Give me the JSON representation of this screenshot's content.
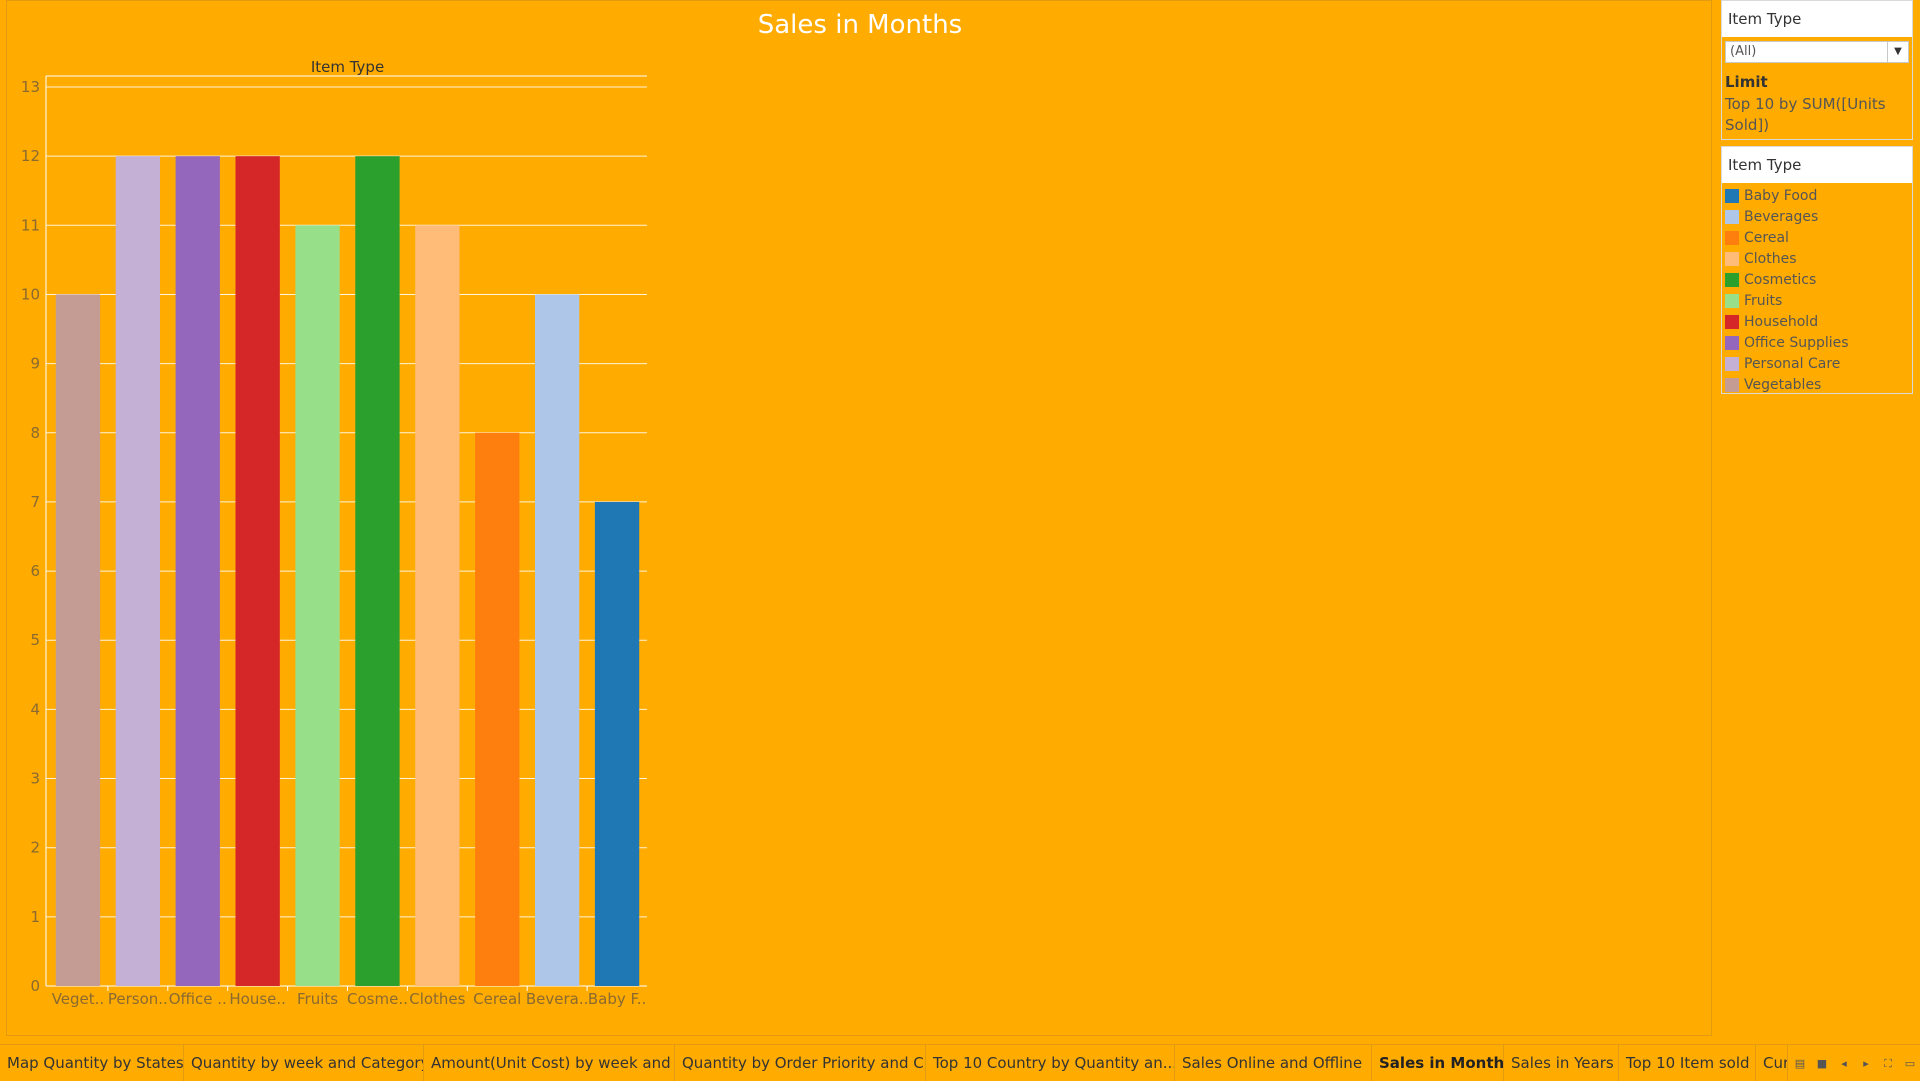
{
  "chart_data": {
    "type": "bar",
    "title": "Sales in Months",
    "header": "Item Type",
    "categories": [
      "Veget..",
      "Person..",
      "Office ..",
      "House..",
      "Fruits",
      "Cosme..",
      "Clothes",
      "Cereal",
      "Bevera..",
      "Baby F.."
    ],
    "values": [
      10,
      12,
      12,
      12,
      11,
      12,
      11,
      8,
      10,
      7
    ],
    "colors": [
      "#c49c94",
      "#c5b0d5",
      "#9467bd",
      "#d62728",
      "#98df8a",
      "#2ca02c",
      "#ffbb78",
      "#ff7f0e",
      "#aec7e8",
      "#1f77b4"
    ],
    "ylim": [
      0,
      13
    ],
    "yticks": [
      0,
      1,
      2,
      3,
      4,
      5,
      6,
      7,
      8,
      9,
      10,
      11,
      12,
      13
    ],
    "grid": true
  },
  "filter": {
    "title": "Item Type",
    "selected": "(All)",
    "limit_label": "Limit",
    "limit_text": "Top 10 by SUM([Units Sold])"
  },
  "legend": {
    "title": "Item Type",
    "items": [
      {
        "label": "Baby Food",
        "color": "#1f77b4"
      },
      {
        "label": "Beverages",
        "color": "#aec7e8"
      },
      {
        "label": "Cereal",
        "color": "#ff7f0e"
      },
      {
        "label": "Clothes",
        "color": "#ffbb78"
      },
      {
        "label": "Cosmetics",
        "color": "#2ca02c"
      },
      {
        "label": "Fruits",
        "color": "#98df8a"
      },
      {
        "label": "Household",
        "color": "#d62728"
      },
      {
        "label": "Office Supplies",
        "color": "#9467bd"
      },
      {
        "label": "Personal Care",
        "color": "#c5b0d5"
      },
      {
        "label": "Vegetables",
        "color": "#c49c94"
      }
    ]
  },
  "tabs": [
    {
      "label": "Map Quantity by States",
      "active": false
    },
    {
      "label": "Quantity by week and Category",
      "active": false
    },
    {
      "label": "Amount(Unit Cost) by week and ...",
      "active": false
    },
    {
      "label": "Quantity by Order Priority and C...",
      "active": false
    },
    {
      "label": "Top 10 Country by Quantity  an...",
      "active": false
    },
    {
      "label": "Sales Online and Offline",
      "active": false
    },
    {
      "label": "Sales in Months",
      "active": true
    },
    {
      "label": "Sales in Years",
      "active": false
    },
    {
      "label": "Top 10 Item sold",
      "active": false
    },
    {
      "label": "Cur",
      "active": false
    }
  ],
  "colors": {
    "background": "#ffab00"
  }
}
